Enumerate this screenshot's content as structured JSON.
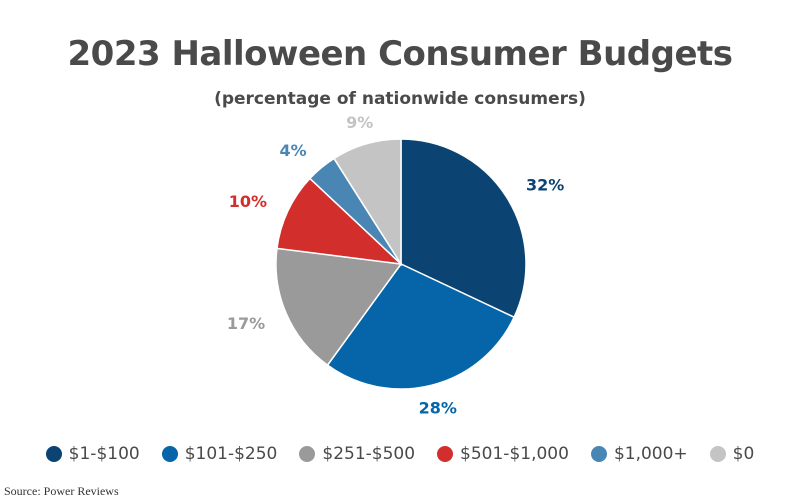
{
  "chart_data": {
    "type": "pie",
    "title": "2023 Halloween Consumer Budgets",
    "subtitle": "(percentage of nationwide consumers)",
    "categories": [
      "$1-$100",
      "$101-$250",
      "$251-$500",
      "$501-$1,000",
      "$1,000+",
      "$0"
    ],
    "values": [
      32,
      28,
      17,
      10,
      4,
      9
    ],
    "data_labels": [
      "32%",
      "28%",
      "17%",
      "10%",
      "4%",
      "9%"
    ],
    "colors": [
      "#0b4372",
      "#0565a8",
      "#9a9a9a",
      "#d22e2b",
      "#4a86b4",
      "#c4c4c4"
    ],
    "start": "12 o'clock",
    "direction": "clockwise",
    "legend_position": "bottom"
  },
  "source": "Source: Power Reviews"
}
